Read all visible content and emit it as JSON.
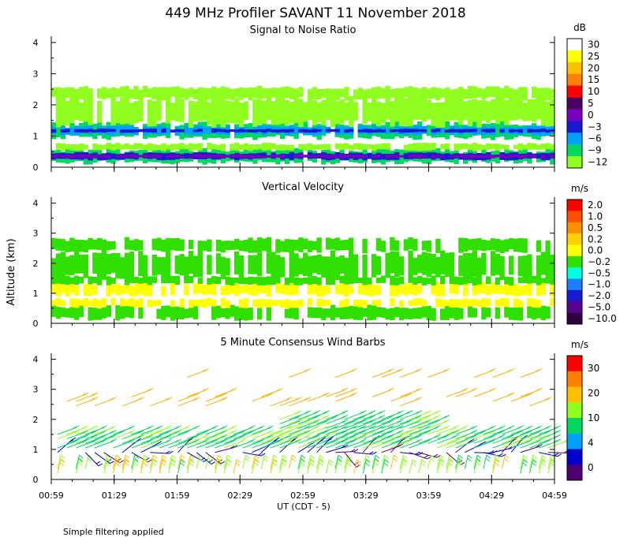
{
  "title": "449 MHz Profiler SAVANT 11 November 2018",
  "y_axis_label": "Altitude (km)",
  "x_axis_label": "UT  (CDT - 5)",
  "x_ticks": [
    "00:59",
    "01:29",
    "01:59",
    "02:29",
    "02:59",
    "03:29",
    "03:59",
    "04:29",
    "04:59"
  ],
  "footnote": "Simple filtering applied",
  "chart_data": [
    {
      "type": "heatmap",
      "title": "Signal to Noise Ratio",
      "ylim": [
        0,
        4.2
      ],
      "y_ticks": [
        "0",
        "1",
        "2",
        "3",
        "4"
      ],
      "colorbar_unit": "dB",
      "colorbar_labels": [
        "30",
        "25",
        "20",
        "15",
        "10",
        "5",
        "0",
        "−3",
        "−6",
        "−9",
        "−12"
      ],
      "colorbar_colors": [
        "#ffffff",
        "#ffff00",
        "#ffc000",
        "#ff7f00",
        "#ff0000",
        "#4a0060",
        "#7a00c0",
        "#1a1ad0",
        "#00a0ff",
        "#00d860",
        "#90ff20"
      ],
      "layers": [
        {
          "from_km": 0.15,
          "to_km": 0.55,
          "color": "#00d860"
        },
        {
          "from_km": 0.25,
          "to_km": 0.45,
          "color": "#1a1ad0"
        },
        {
          "from_km": 0.3,
          "to_km": 0.4,
          "color": "#7a00c0"
        },
        {
          "from_km": 0.55,
          "to_km": 0.75,
          "color": "#90ff20"
        },
        {
          "from_km": 0.95,
          "to_km": 1.4,
          "color": "#00d860"
        },
        {
          "from_km": 1.05,
          "to_km": 1.3,
          "color": "#00a0ff"
        },
        {
          "from_km": 1.12,
          "to_km": 1.22,
          "color": "#1a1ad0"
        },
        {
          "from_km": 1.4,
          "to_km": 2.2,
          "color": "#90ff20"
        },
        {
          "from_km": 2.2,
          "to_km": 2.55,
          "color": "#90ff20"
        }
      ]
    },
    {
      "type": "heatmap",
      "title": "Vertical Velocity",
      "ylim": [
        0,
        4.2
      ],
      "y_ticks": [
        "0",
        "1",
        "2",
        "3",
        "4"
      ],
      "colorbar_unit": "m/s",
      "colorbar_labels": [
        "2.0",
        "1.0",
        "0.5",
        "0.2",
        "0.0",
        "−0.2",
        "−0.5",
        "−1.0",
        "−2.0",
        "−5.0",
        "−10.0"
      ],
      "colorbar_colors": [
        "#ff0000",
        "#ff5000",
        "#ff9000",
        "#ffd000",
        "#ffff00",
        "#30e000",
        "#00ffe0",
        "#1e7eff",
        "#1a1ad0",
        "#5a0090",
        "#300040"
      ],
      "layers": [
        {
          "from_km": 0.15,
          "to_km": 0.55,
          "color": "#30e000"
        },
        {
          "from_km": 0.55,
          "to_km": 0.8,
          "color": "#ffff00"
        },
        {
          "from_km": 0.95,
          "to_km": 1.3,
          "color": "#ffff00"
        },
        {
          "from_km": 1.3,
          "to_km": 1.55,
          "color": "#30e000"
        },
        {
          "from_km": 1.55,
          "to_km": 2.3,
          "color": "#30e000"
        },
        {
          "from_km": 2.4,
          "to_km": 2.8,
          "color": "#30e000"
        }
      ]
    },
    {
      "type": "scatter",
      "title": "5 Minute Consensus Wind Barbs",
      "ylim": [
        0,
        4.2
      ],
      "y_ticks": [
        "0",
        "1",
        "2",
        "3",
        "4"
      ],
      "colorbar_unit": "m/s",
      "colorbar_labels": [
        "30",
        "20",
        "10",
        "4",
        "0"
      ],
      "colorbar_colors": [
        "#ff0000",
        "#ff8000",
        "#ffc000",
        "#90ff20",
        "#00d860",
        "#00a0ff",
        "#0000d0",
        "#500070"
      ],
      "barb_levels_km": [
        0.2,
        0.35,
        0.9,
        1.05,
        1.2,
        1.35,
        1.5,
        1.7,
        1.85,
        2.0,
        2.45,
        2.6,
        2.75,
        3.4
      ]
    }
  ]
}
